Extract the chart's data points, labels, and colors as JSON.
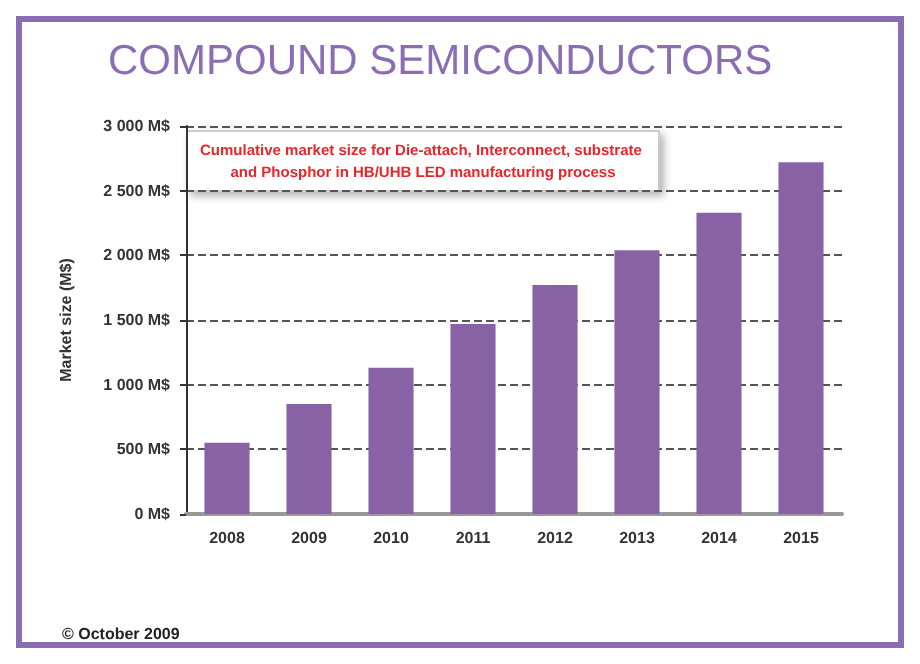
{
  "chart_data": {
    "type": "bar",
    "title": "COMPOUND SEMICONDUCTORS",
    "ylabel": "Market size (M$)",
    "categories": [
      "2008",
      "2009",
      "2010",
      "2011",
      "2012",
      "2013",
      "2014",
      "2015"
    ],
    "values": [
      550,
      850,
      1130,
      1470,
      1770,
      2040,
      2330,
      2720
    ],
    "color": "#8862a5",
    "ylim": [
      0,
      3000
    ],
    "yticks": [
      {
        "value": 0,
        "label": "0 M$"
      },
      {
        "value": 500,
        "label": "500 M$"
      },
      {
        "value": 1000,
        "label": "1 000 M$"
      },
      {
        "value": 1500,
        "label": "1 500 M$"
      },
      {
        "value": 2000,
        "label": "2 000 M$"
      },
      {
        "value": 2500,
        "label": "2 500 M$"
      },
      {
        "value": 3000,
        "label": "3 000 M$"
      }
    ],
    "grid": "y",
    "annotations": [
      "Cumulative market size for Die-attach, Interconnect, substrate and Phosphor in HB/UHB LED manufacturing process",
      "© October 2009"
    ]
  }
}
